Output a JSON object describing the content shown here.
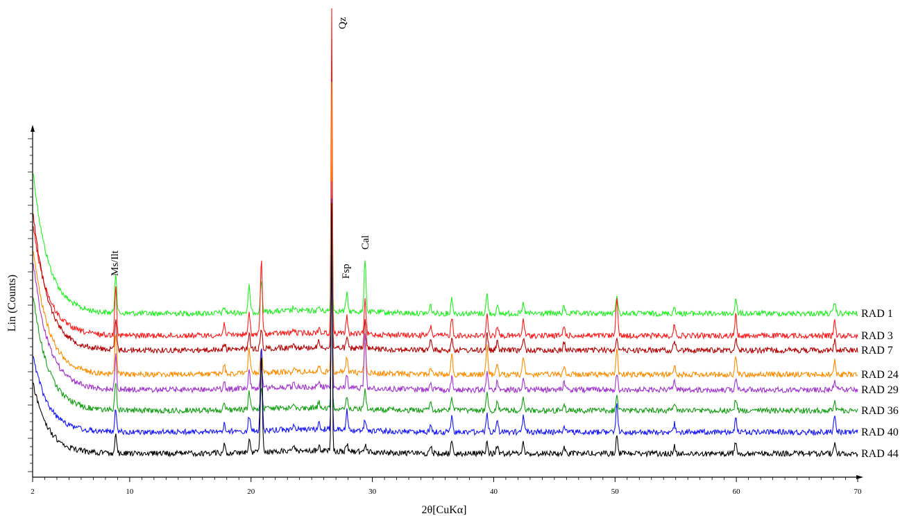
{
  "chart_data": {
    "type": "line",
    "title": "",
    "xlabel": "2θ[CuKα]",
    "ylabel": "Lin (Counts)",
    "xlim": [
      2,
      70
    ],
    "xticks": [
      2,
      10,
      20,
      30,
      40,
      50,
      60,
      70
    ],
    "x_tick_labels": [
      "2",
      "10",
      "20",
      "30",
      "40",
      "50",
      "60",
      "70"
    ],
    "y_ticks_labelled": false,
    "grid": false,
    "legend": "series labels at right end of each trace",
    "annotations": [
      {
        "text": "Ms/Ilt",
        "x": 8.8
      },
      {
        "text": "Qz",
        "x": 26.6
      },
      {
        "text": "Fsp",
        "x": 27.9
      },
      {
        "text": "Cal",
        "x": 29.4
      }
    ],
    "peaks_2theta": [
      8.85,
      17.8,
      19.85,
      20.85,
      23.5,
      25.6,
      26.65,
      27.9,
      29.4,
      34.8,
      36.55,
      39.45,
      40.3,
      42.45,
      45.8,
      50.15,
      54.9,
      59.95,
      68.1
    ],
    "series": [
      {
        "name": "RAD 1",
        "color": "#22ee22",
        "baseline": 452,
        "start": 240,
        "peaks": [
          60,
          8,
          38,
          45,
          5,
          6,
          320,
          26,
          78,
          12,
          22,
          28,
          9,
          14,
          10,
          28,
          10,
          20,
          16
        ]
      },
      {
        "name": "RAD 3",
        "color": "#ff1a1a",
        "baseline": 484,
        "start": 320,
        "peaks": [
          75,
          18,
          30,
          108,
          6,
          8,
          500,
          24,
          48,
          14,
          26,
          32,
          16,
          24,
          14,
          58,
          16,
          30,
          22
        ]
      },
      {
        "name": "RAD 7",
        "color": "#b30000",
        "baseline": 505,
        "start": 300,
        "peaks": [
          42,
          10,
          22,
          30,
          8,
          10,
          280,
          14,
          40,
          16,
          18,
          24,
          12,
          18,
          12,
          20,
          14,
          18,
          14
        ]
      },
      {
        "name": "RAD 24",
        "color": "#ff8c00",
        "baseline": 540,
        "start": 350,
        "peaks": [
          60,
          12,
          35,
          40,
          6,
          8,
          420,
          22,
          46,
          12,
          28,
          42,
          16,
          26,
          12,
          38,
          14,
          26,
          20
        ]
      },
      {
        "name": "RAD 29",
        "color": "#a033cc",
        "baseline": 562,
        "start": 370,
        "peaks": [
          50,
          8,
          26,
          30,
          5,
          6,
          300,
          18,
          80,
          10,
          18,
          26,
          12,
          16,
          10,
          22,
          12,
          18,
          14
        ]
      },
      {
        "name": "RAD 36",
        "color": "#159e15",
        "baseline": 592,
        "start": 420,
        "peaks": [
          40,
          10,
          26,
          28,
          6,
          8,
          260,
          16,
          30,
          12,
          18,
          24,
          12,
          18,
          12,
          20,
          12,
          18,
          14
        ]
      },
      {
        "name": "RAD 40",
        "color": "#1414ff",
        "baseline": 623,
        "start": 510,
        "peaks": [
          35,
          10,
          22,
          125,
          8,
          10,
          330,
          30,
          16,
          12,
          26,
          30,
          14,
          22,
          12,
          44,
          12,
          22,
          20
        ]
      },
      {
        "name": "RAD 44",
        "color": "#000000",
        "baseline": 654,
        "start": 550,
        "peaks": [
          25,
          12,
          18,
          140,
          6,
          8,
          360,
          12,
          10,
          12,
          18,
          18,
          12,
          16,
          10,
          24,
          10,
          18,
          14
        ]
      }
    ]
  }
}
